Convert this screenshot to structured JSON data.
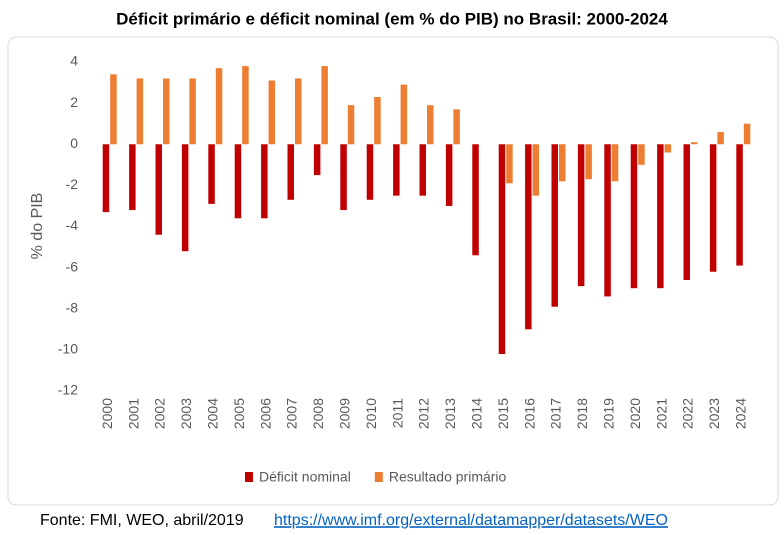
{
  "chart_data": {
    "type": "bar",
    "title": "Déficit primário e déficit nominal (em % do PIB) no Brasil: 2000-2024",
    "y_label": "% do PIB",
    "categories": [
      "2000",
      "2001",
      "2002",
      "2003",
      "2004",
      "2005",
      "2006",
      "2007",
      "2008",
      "2009",
      "2010",
      "2011",
      "2012",
      "2013",
      "2014",
      "2015",
      "2016",
      "2017",
      "2018",
      "2019",
      "2020",
      "2021",
      "2022",
      "2023",
      "2024"
    ],
    "series": [
      {
        "name": "Déficit nominal",
        "color": "#c00000",
        "values": [
          -3.3,
          -3.2,
          -4.4,
          -5.2,
          -2.9,
          -3.6,
          -3.6,
          -2.7,
          -1.5,
          -3.2,
          -2.7,
          -2.5,
          -2.5,
          -3.0,
          -5.4,
          -10.2,
          -9.0,
          -7.9,
          -6.9,
          -7.4,
          -7.0,
          -7.0,
          -6.6,
          -6.2,
          -5.9
        ]
      },
      {
        "name": "Resultado primário",
        "color": "#ed7d31",
        "values": [
          3.4,
          3.2,
          3.2,
          3.2,
          3.7,
          3.8,
          3.1,
          3.2,
          3.8,
          1.9,
          2.3,
          2.9,
          1.9,
          1.7,
          0,
          -1.9,
          -2.5,
          -1.8,
          -1.7,
          -1.8,
          -1.0,
          -0.4,
          0.1,
          0.6,
          1.0
        ]
      }
    ],
    "ylim": [
      -12,
      4
    ],
    "yticks": [
      -12,
      -10,
      -8,
      -6,
      -4,
      -2,
      0,
      2,
      4
    ],
    "grid": false,
    "legend": "bottom",
    "source": "Fonte: FMI, WEO, abril/2019",
    "source_link": "https://www.imf.org/external/datamapper/datasets/WEO"
  }
}
